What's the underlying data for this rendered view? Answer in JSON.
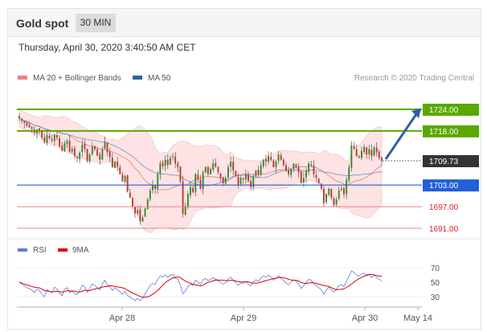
{
  "header": {
    "title": "Gold spot",
    "timeframe": "30 MIN"
  },
  "timestamp": "Thursday, April 30, 2020 3:40:50 AM CET",
  "legend": {
    "bollinger_label": "MA 20 + Bollinger Bands",
    "ma50_label": "MA 50",
    "credit": "Research © 2020 Trading Central",
    "rsi_label": "RSI",
    "rsi_ma_label": "9MA"
  },
  "colors": {
    "bull": "#2f8a2f",
    "bear": "#c0392b",
    "band": "#fde0e0",
    "ma20": "#e87878",
    "ma50": "#2f6db5",
    "resistance": "#5aa800",
    "support": "#2060d8",
    "support_low": "#f08080",
    "current": "#333333",
    "rsi": "#5b7fd6",
    "rsi_ma": "#e00000"
  },
  "chart_data": [
    {
      "type": "candlestick",
      "title": "Gold spot",
      "timeframe": "30 MIN",
      "x_ticks": [
        "Apr 28",
        "Apr 29",
        "Apr 30",
        "May 14"
      ],
      "y_ticks": [
        1724.0,
        1718.0,
        1709.73,
        1703.0,
        1697.0,
        1691.0
      ],
      "ylim": [
        1690,
        1727
      ],
      "current_price": 1709.73,
      "levels": [
        {
          "price": 1724.0,
          "label": "1724.00",
          "kind": "resistance"
        },
        {
          "price": 1718.0,
          "label": "1718.00",
          "kind": "resistance"
        },
        {
          "price": 1703.0,
          "label": "1703.00",
          "kind": "pivot"
        },
        {
          "price": 1697.0,
          "label": "1697.00",
          "kind": "support"
        },
        {
          "price": 1691.0,
          "label": "1691.00",
          "kind": "support"
        }
      ],
      "forecast": {
        "from": 1709.73,
        "to": 1724.0
      },
      "series": [
        {
          "name": "MA 20 + Bollinger Bands"
        },
        {
          "name": "MA 50"
        }
      ],
      "close": [
        1721.5,
        1720.8,
        1720.2,
        1719.5,
        1719.0,
        1718.6,
        1717.5,
        1718.4,
        1717.8,
        1716.2,
        1714.9,
        1716.8,
        1716.0,
        1715.3,
        1717.0,
        1716.1,
        1713.8,
        1712.5,
        1714.6,
        1715.2,
        1712.3,
        1713.0,
        1711.0,
        1710.5,
        1712.0,
        1714.2,
        1713.0,
        1709.7,
        1711.5,
        1713.6,
        1712.9,
        1711.2,
        1710.0,
        1713.0,
        1715.0,
        1712.1,
        1710.8,
        1708.0,
        1709.5,
        1708.1,
        1706.0,
        1704.0,
        1705.5,
        1701.2,
        1699.5,
        1697.0,
        1695.1,
        1696.0,
        1693.0,
        1694.0,
        1696.5,
        1699.0,
        1701.5,
        1703.0,
        1702.0,
        1706.0,
        1709.0,
        1708.2,
        1710.0,
        1708.5,
        1710.5,
        1711.0,
        1709.0,
        1708.0,
        1704.0,
        1695.0,
        1697.0,
        1700.5,
        1702.5,
        1701.0,
        1706.0,
        1704.5,
        1702.0,
        1706.5,
        1708.0,
        1706.0,
        1707.5,
        1709.0,
        1708.0,
        1706.5,
        1705.0,
        1703.5,
        1705.0,
        1708.0,
        1709.5,
        1707.0,
        1705.5,
        1703.0,
        1705.0,
        1704.5,
        1706.0,
        1704.0,
        1702.5,
        1705.5,
        1707.0,
        1706.0,
        1708.5,
        1710.0,
        1709.5,
        1711.0,
        1710.0,
        1708.0,
        1709.5,
        1711.5,
        1710.0,
        1708.5,
        1707.0,
        1706.0,
        1707.5,
        1709.0,
        1708.0,
        1706.5,
        1703.5,
        1705.0,
        1707.0,
        1709.0,
        1708.5,
        1706.0,
        1705.0,
        1703.5,
        1702.0,
        1698.0,
        1700.5,
        1702.0,
        1699.5,
        1697.5,
        1699.0,
        1701.5,
        1702.0,
        1700.5,
        1704.5,
        1708.0,
        1714.0,
        1713.0,
        1711.0,
        1710.5,
        1712.5,
        1713.5,
        1711.5,
        1713.0,
        1711.0,
        1713.5,
        1712.0,
        1710.5,
        1709.7
      ],
      "rsi_ylim": [
        20,
        80
      ],
      "rsi_ticks": [
        70,
        50,
        30
      ]
    }
  ]
}
